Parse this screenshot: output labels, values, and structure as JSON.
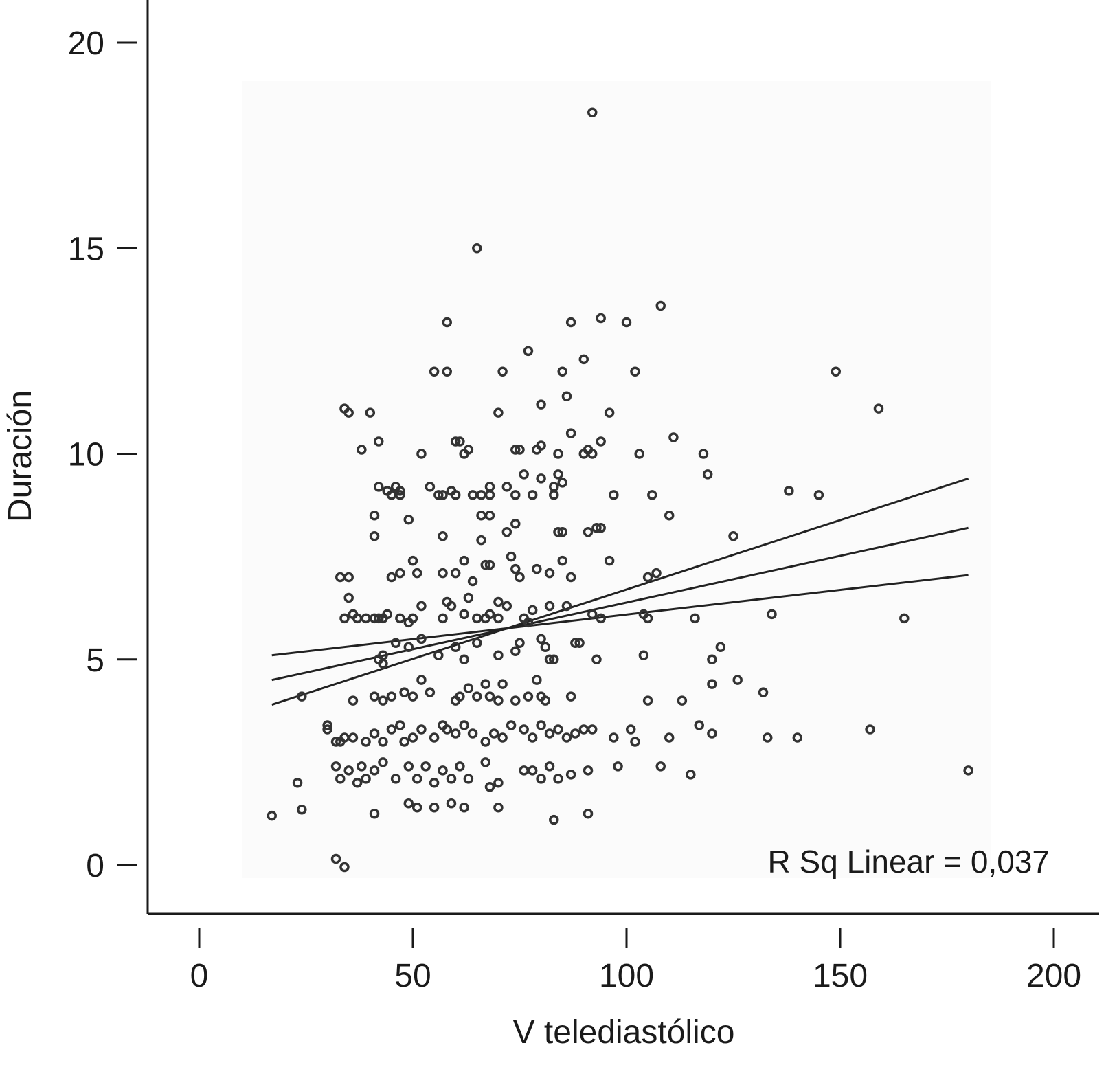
{
  "chart_data": {
    "type": "scatter",
    "xlabel": "V telediastólico",
    "ylabel": "Duración",
    "xlim": [
      0,
      200
    ],
    "ylim": [
      0,
      20
    ],
    "xticks": [
      0,
      50,
      100,
      150,
      200
    ],
    "yticks": [
      0,
      5,
      10,
      15,
      20
    ],
    "grid": false,
    "annotation": "R Sq Linear = 0,037",
    "fit": {
      "x_range": [
        17,
        180
      ],
      "line": [
        [
          17,
          4.5
        ],
        [
          180,
          8.2
        ]
      ],
      "ci_upper": [
        [
          17,
          5.1
        ],
        [
          180,
          7.05
        ]
      ],
      "ci_lower": [
        [
          17,
          3.9
        ],
        [
          180,
          9.4
        ]
      ]
    },
    "points": [
      [
        92,
        18.3
      ],
      [
        65,
        15
      ],
      [
        58,
        13.2
      ],
      [
        108,
        13.6
      ],
      [
        94,
        13.3
      ],
      [
        87,
        13.2
      ],
      [
        100,
        13.2
      ],
      [
        77,
        12.5
      ],
      [
        90,
        12.3
      ],
      [
        55,
        12
      ],
      [
        58,
        12
      ],
      [
        71,
        12
      ],
      [
        85,
        12
      ],
      [
        102,
        12
      ],
      [
        149,
        12
      ],
      [
        34,
        11.1
      ],
      [
        35,
        11
      ],
      [
        40,
        11
      ],
      [
        70,
        11
      ],
      [
        80,
        11.2
      ],
      [
        86,
        11.4
      ],
      [
        96,
        11
      ],
      [
        159,
        11.1
      ],
      [
        38,
        10.1
      ],
      [
        42,
        10.3
      ],
      [
        52,
        10
      ],
      [
        60,
        10.3
      ],
      [
        61,
        10.3
      ],
      [
        63,
        10.1
      ],
      [
        62,
        10
      ],
      [
        74,
        10.1
      ],
      [
        75,
        10.1
      ],
      [
        79,
        10.1
      ],
      [
        80,
        10.2
      ],
      [
        84,
        10
      ],
      [
        87,
        10.5
      ],
      [
        91,
        10.1
      ],
      [
        90,
        10
      ],
      [
        92,
        10
      ],
      [
        94,
        10.3
      ],
      [
        103,
        10
      ],
      [
        111,
        10.4
      ],
      [
        118,
        10
      ],
      [
        119,
        9.5
      ],
      [
        42,
        9.2
      ],
      [
        44,
        9.1
      ],
      [
        45,
        9
      ],
      [
        46,
        9.2
      ],
      [
        47,
        9.1
      ],
      [
        47,
        9
      ],
      [
        54,
        9.2
      ],
      [
        56,
        9
      ],
      [
        57,
        9
      ],
      [
        59,
        9.1
      ],
      [
        60,
        9
      ],
      [
        64,
        9
      ],
      [
        66,
        9
      ],
      [
        68,
        9.2
      ],
      [
        68,
        9
      ],
      [
        72,
        9.2
      ],
      [
        74,
        9
      ],
      [
        76,
        9.5
      ],
      [
        78,
        9
      ],
      [
        80,
        9.4
      ],
      [
        83,
        9.2
      ],
      [
        83,
        9
      ],
      [
        84,
        9.5
      ],
      [
        85,
        9.3
      ],
      [
        97,
        9
      ],
      [
        106,
        9
      ],
      [
        138,
        9.1
      ],
      [
        145,
        9
      ],
      [
        41,
        8.5
      ],
      [
        49,
        8.4
      ],
      [
        66,
        8.5
      ],
      [
        68,
        8.5
      ],
      [
        41,
        8
      ],
      [
        57,
        8
      ],
      [
        66,
        7.9
      ],
      [
        72,
        8.1
      ],
      [
        74,
        8.3
      ],
      [
        84,
        8.1
      ],
      [
        85,
        8.1
      ],
      [
        91,
        8.1
      ],
      [
        93,
        8.2
      ],
      [
        94,
        8.2
      ],
      [
        110,
        8.5
      ],
      [
        125,
        8
      ],
      [
        50,
        7.4
      ],
      [
        51,
        7.1
      ],
      [
        57,
        7.1
      ],
      [
        60,
        7.1
      ],
      [
        62,
        7.4
      ],
      [
        64,
        6.9
      ],
      [
        67,
        7.3
      ],
      [
        68,
        7.3
      ],
      [
        73,
        7.5
      ],
      [
        74,
        7.2
      ],
      [
        75,
        7
      ],
      [
        79,
        7.2
      ],
      [
        82,
        7.1
      ],
      [
        85,
        7.4
      ],
      [
        87,
        7
      ],
      [
        96,
        7.4
      ],
      [
        105,
        7
      ],
      [
        107,
        7.1
      ],
      [
        33,
        7
      ],
      [
        35,
        7
      ],
      [
        45,
        7
      ],
      [
        47,
        7.1
      ],
      [
        35,
        6.5
      ],
      [
        58,
        6.4
      ],
      [
        63,
        6.5
      ],
      [
        70,
        6.4
      ],
      [
        34,
        6
      ],
      [
        36,
        6.1
      ],
      [
        37,
        6
      ],
      [
        39,
        6
      ],
      [
        41,
        6
      ],
      [
        43,
        6
      ],
      [
        42,
        6
      ],
      [
        44,
        6.1
      ],
      [
        47,
        6
      ],
      [
        49,
        5.9
      ],
      [
        50,
        6
      ],
      [
        52,
        6.3
      ],
      [
        57,
        6
      ],
      [
        59,
        6.3
      ],
      [
        62,
        6.1
      ],
      [
        65,
        6
      ],
      [
        67,
        6
      ],
      [
        68,
        6.1
      ],
      [
        70,
        6
      ],
      [
        72,
        6.3
      ],
      [
        76,
        6
      ],
      [
        77,
        5.9
      ],
      [
        78,
        6.2
      ],
      [
        82,
        6.3
      ],
      [
        86,
        6.3
      ],
      [
        92,
        6.1
      ],
      [
        94,
        6
      ],
      [
        104,
        6.1
      ],
      [
        105,
        6
      ],
      [
        116,
        6
      ],
      [
        134,
        6.1
      ],
      [
        165,
        6
      ],
      [
        43,
        5.1
      ],
      [
        42,
        5
      ],
      [
        43,
        4.9
      ],
      [
        46,
        5.4
      ],
      [
        49,
        5.3
      ],
      [
        52,
        5.5
      ],
      [
        56,
        5.1
      ],
      [
        60,
        5.3
      ],
      [
        62,
        5
      ],
      [
        65,
        5.4
      ],
      [
        70,
        5.1
      ],
      [
        74,
        5.2
      ],
      [
        75,
        5.4
      ],
      [
        80,
        5.5
      ],
      [
        81,
        5.3
      ],
      [
        82,
        5
      ],
      [
        83,
        5
      ],
      [
        88,
        5.4
      ],
      [
        89,
        5.4
      ],
      [
        93,
        5
      ],
      [
        104,
        5.1
      ],
      [
        120,
        5
      ],
      [
        122,
        5.3
      ],
      [
        24,
        4.1
      ],
      [
        36,
        4
      ],
      [
        41,
        4.1
      ],
      [
        43,
        4
      ],
      [
        45,
        4.1
      ],
      [
        48,
        4.2
      ],
      [
        50,
        4.1
      ],
      [
        52,
        4.5
      ],
      [
        54,
        4.2
      ],
      [
        60,
        4
      ],
      [
        61,
        4.1
      ],
      [
        63,
        4.3
      ],
      [
        65,
        4.1
      ],
      [
        67,
        4.4
      ],
      [
        68,
        4.1
      ],
      [
        70,
        4
      ],
      [
        71,
        4.4
      ],
      [
        74,
        4
      ],
      [
        77,
        4.1
      ],
      [
        79,
        4.5
      ],
      [
        80,
        4.1
      ],
      [
        81,
        4
      ],
      [
        87,
        4.1
      ],
      [
        105,
        4
      ],
      [
        113,
        4
      ],
      [
        120,
        4.4
      ],
      [
        126,
        4.5
      ],
      [
        132,
        4.2
      ],
      [
        30,
        3.3
      ],
      [
        30,
        3.4
      ],
      [
        32,
        3
      ],
      [
        33,
        3
      ],
      [
        34,
        3.1
      ],
      [
        36,
        3.1
      ],
      [
        39,
        3
      ],
      [
        41,
        3.2
      ],
      [
        43,
        3
      ],
      [
        45,
        3.3
      ],
      [
        47,
        3.4
      ],
      [
        48,
        3
      ],
      [
        50,
        3.1
      ],
      [
        52,
        3.3
      ],
      [
        55,
        3.1
      ],
      [
        57,
        3.4
      ],
      [
        58,
        3.3
      ],
      [
        60,
        3.2
      ],
      [
        62,
        3.4
      ],
      [
        64,
        3.2
      ],
      [
        67,
        3
      ],
      [
        69,
        3.2
      ],
      [
        71,
        3.1
      ],
      [
        73,
        3.4
      ],
      [
        76,
        3.3
      ],
      [
        78,
        3.1
      ],
      [
        80,
        3.4
      ],
      [
        82,
        3.2
      ],
      [
        84,
        3.3
      ],
      [
        86,
        3.1
      ],
      [
        88,
        3.2
      ],
      [
        90,
        3.3
      ],
      [
        92,
        3.3
      ],
      [
        97,
        3.1
      ],
      [
        101,
        3.3
      ],
      [
        102,
        3
      ],
      [
        110,
        3.1
      ],
      [
        117,
        3.4
      ],
      [
        120,
        3.2
      ],
      [
        133,
        3.1
      ],
      [
        140,
        3.1
      ],
      [
        157,
        3.3
      ],
      [
        32,
        2.4
      ],
      [
        33,
        2.1
      ],
      [
        35,
        2.3
      ],
      [
        37,
        2
      ],
      [
        38,
        2.4
      ],
      [
        39,
        2.1
      ],
      [
        41,
        2.3
      ],
      [
        43,
        2.5
      ],
      [
        46,
        2.1
      ],
      [
        49,
        2.4
      ],
      [
        51,
        2.1
      ],
      [
        53,
        2.4
      ],
      [
        55,
        2
      ],
      [
        57,
        2.3
      ],
      [
        59,
        2.1
      ],
      [
        61,
        2.4
      ],
      [
        63,
        2.1
      ],
      [
        67,
        2.5
      ],
      [
        68,
        1.9
      ],
      [
        70,
        2
      ],
      [
        76,
        2.3
      ],
      [
        78,
        2.3
      ],
      [
        80,
        2.1
      ],
      [
        82,
        2.4
      ],
      [
        84,
        2.1
      ],
      [
        87,
        2.2
      ],
      [
        91,
        2.3
      ],
      [
        98,
        2.4
      ],
      [
        108,
        2.4
      ],
      [
        115,
        2.2
      ],
      [
        180,
        2.3
      ],
      [
        23,
        2
      ],
      [
        49,
        1.5
      ],
      [
        51,
        1.4
      ],
      [
        55,
        1.4
      ],
      [
        59,
        1.5
      ],
      [
        62,
        1.4
      ],
      [
        70,
        1.4
      ],
      [
        17,
        1.2
      ],
      [
        24,
        1.35
      ],
      [
        41,
        1.25
      ],
      [
        83,
        1.1
      ],
      [
        91,
        1.25
      ],
      [
        32,
        0.15
      ],
      [
        34,
        -0.05
      ]
    ]
  }
}
